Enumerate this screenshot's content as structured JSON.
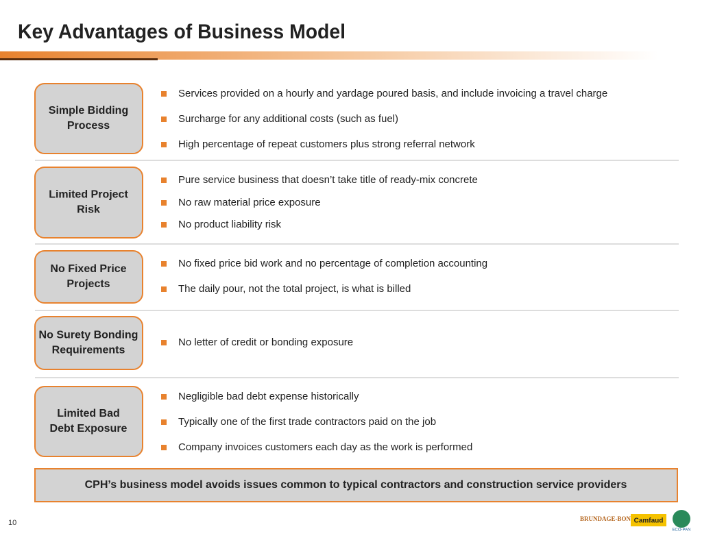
{
  "title": "Key Advantages of Business Model",
  "sections": [
    {
      "label": [
        "Simple Bidding",
        "Process"
      ],
      "bullets": [
        "Services provided on a hourly and yardage poured basis, and include invoicing a travel charge",
        "Surcharge for any additional costs (such as fuel)",
        "High percentage of repeat customers plus strong referral network"
      ]
    },
    {
      "label": [
        "Limited Project",
        "Risk"
      ],
      "bullets": [
        "Pure service business that doesn’t take title of ready-mix concrete",
        "No raw material price exposure",
        "No product liability risk"
      ]
    },
    {
      "label": [
        "No Fixed Price",
        "Projects"
      ],
      "bullets": [
        "No fixed price bid work and no percentage of completion accounting",
        "The daily pour, not the total project, is what is billed"
      ]
    },
    {
      "label": [
        "No Surety Bonding",
        "Requirements"
      ],
      "bullets": [
        "No letter of credit or bonding exposure"
      ]
    },
    {
      "label": [
        "Limited Bad",
        "Debt Exposure"
      ],
      "bullets": [
        "Negligible bad debt expense historically",
        "Typically one of the first trade contractors paid on the job",
        "Company invoices customers each day as the work is performed"
      ]
    }
  ],
  "banner": "CPH’s business model avoids issues common to typical contractors and construction service providers",
  "page_number": "10",
  "logos": [
    "BRUNDAGE-BONE",
    "Camfaud",
    "ECO-PAN"
  ]
}
